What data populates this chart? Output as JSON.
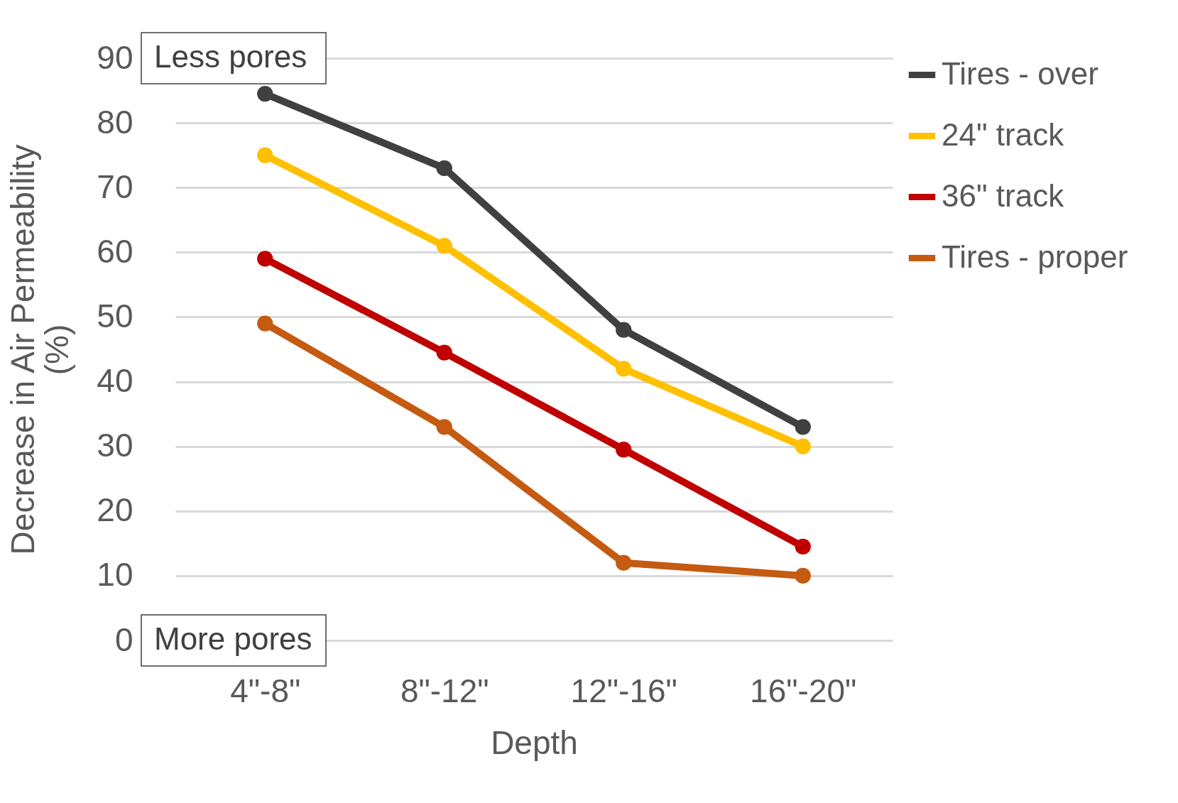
{
  "chart_data": {
    "type": "line",
    "xlabel": "Depth",
    "ylabel": "Decrease in Air Permeability (%)",
    "categories": [
      "4\"-8\"",
      "8\"-12\"",
      "12\"-16\"",
      "16\"-20\""
    ],
    "series": [
      {
        "name": "Tires - over",
        "color": "#404040",
        "values": [
          84.5,
          73,
          48,
          33
        ]
      },
      {
        "name": "24\" track",
        "color": "#ffc000",
        "values": [
          75,
          61,
          42,
          30
        ]
      },
      {
        "name": "36\" track",
        "color": "#c00000",
        "values": [
          59,
          44.5,
          29.5,
          14.5
        ]
      },
      {
        "name": "Tires - proper",
        "color": "#c55a11",
        "values": [
          49,
          33,
          12,
          10
        ]
      }
    ],
    "ylim": [
      0,
      90
    ],
    "yticks": [
      0,
      10,
      20,
      30,
      40,
      50,
      60,
      70,
      80,
      90
    ],
    "grid": "y",
    "legend": "top right",
    "marker": "circle",
    "line_style": "solid",
    "annotations": [
      "Less pores",
      "More pores"
    ]
  }
}
